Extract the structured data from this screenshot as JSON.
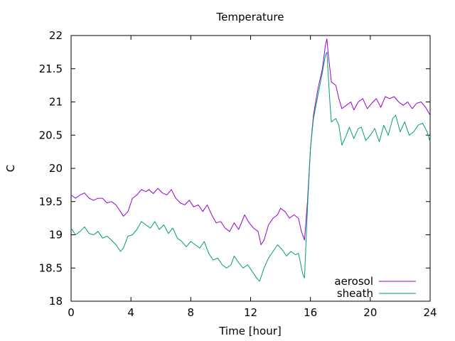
{
  "chart_data": {
    "type": "line",
    "title": "Temperature",
    "xlabel": "Time [hour]",
    "ylabel": "C",
    "xlim": [
      0,
      24
    ],
    "ylim": [
      18,
      22
    ],
    "xticks": [
      0,
      4,
      8,
      12,
      16,
      20,
      24
    ],
    "yticks": [
      18,
      18.5,
      19,
      19.5,
      20,
      20.5,
      21,
      21.5,
      22
    ],
    "grid": false,
    "legend_position": "bottom-right",
    "series": [
      {
        "name": "aerosol",
        "color": "#9400d3",
        "points": [
          [
            0.0,
            19.6
          ],
          [
            0.3,
            19.55
          ],
          [
            0.6,
            19.6
          ],
          [
            0.9,
            19.63
          ],
          [
            1.2,
            19.55
          ],
          [
            1.5,
            19.52
          ],
          [
            1.8,
            19.55
          ],
          [
            2.1,
            19.55
          ],
          [
            2.4,
            19.48
          ],
          [
            2.7,
            19.5
          ],
          [
            3.0,
            19.45
          ],
          [
            3.3,
            19.35
          ],
          [
            3.5,
            19.28
          ],
          [
            3.8,
            19.35
          ],
          [
            4.1,
            19.55
          ],
          [
            4.4,
            19.6
          ],
          [
            4.7,
            19.68
          ],
          [
            5.0,
            19.65
          ],
          [
            5.2,
            19.68
          ],
          [
            5.5,
            19.62
          ],
          [
            5.8,
            19.7
          ],
          [
            6.1,
            19.63
          ],
          [
            6.4,
            19.6
          ],
          [
            6.7,
            19.68
          ],
          [
            7.0,
            19.55
          ],
          [
            7.3,
            19.48
          ],
          [
            7.6,
            19.45
          ],
          [
            7.9,
            19.52
          ],
          [
            8.2,
            19.42
          ],
          [
            8.5,
            19.45
          ],
          [
            8.8,
            19.35
          ],
          [
            9.1,
            19.45
          ],
          [
            9.4,
            19.3
          ],
          [
            9.7,
            19.18
          ],
          [
            10.0,
            19.2
          ],
          [
            10.3,
            19.1
          ],
          [
            10.6,
            19.05
          ],
          [
            10.9,
            19.18
          ],
          [
            11.2,
            19.08
          ],
          [
            11.6,
            19.3
          ],
          [
            11.9,
            19.18
          ],
          [
            12.2,
            19.1
          ],
          [
            12.5,
            19.05
          ],
          [
            12.7,
            18.85
          ],
          [
            12.9,
            18.92
          ],
          [
            13.2,
            19.15
          ],
          [
            13.5,
            19.25
          ],
          [
            13.8,
            19.3
          ],
          [
            14.0,
            19.4
          ],
          [
            14.3,
            19.35
          ],
          [
            14.6,
            19.25
          ],
          [
            14.9,
            19.3
          ],
          [
            15.2,
            19.25
          ],
          [
            15.4,
            19.05
          ],
          [
            15.6,
            18.92
          ],
          [
            15.8,
            19.5
          ],
          [
            16.0,
            20.3
          ],
          [
            16.2,
            20.8
          ],
          [
            16.5,
            21.2
          ],
          [
            16.8,
            21.5
          ],
          [
            17.0,
            21.85
          ],
          [
            17.1,
            21.95
          ],
          [
            17.2,
            21.7
          ],
          [
            17.4,
            21.3
          ],
          [
            17.7,
            21.25
          ],
          [
            17.9,
            21.05
          ],
          [
            18.1,
            20.9
          ],
          [
            18.4,
            20.95
          ],
          [
            18.7,
            21.0
          ],
          [
            18.9,
            20.88
          ],
          [
            19.2,
            21.0
          ],
          [
            19.5,
            21.05
          ],
          [
            19.8,
            20.9
          ],
          [
            20.1,
            20.98
          ],
          [
            20.4,
            21.05
          ],
          [
            20.7,
            20.92
          ],
          [
            21.0,
            21.08
          ],
          [
            21.3,
            21.05
          ],
          [
            21.6,
            21.08
          ],
          [
            21.9,
            21.0
          ],
          [
            22.2,
            20.95
          ],
          [
            22.5,
            21.0
          ],
          [
            22.8,
            20.9
          ],
          [
            23.1,
            20.98
          ],
          [
            23.4,
            21.0
          ],
          [
            23.7,
            20.92
          ],
          [
            24.0,
            20.8
          ]
        ]
      },
      {
        "name": "sheath",
        "color": "#009e73",
        "points": [
          [
            0.0,
            19.1
          ],
          [
            0.3,
            19.0
          ],
          [
            0.6,
            19.05
          ],
          [
            0.9,
            19.12
          ],
          [
            1.2,
            19.02
          ],
          [
            1.5,
            19.0
          ],
          [
            1.8,
            19.05
          ],
          [
            2.1,
            18.95
          ],
          [
            2.4,
            18.98
          ],
          [
            2.7,
            18.92
          ],
          [
            3.0,
            18.85
          ],
          [
            3.3,
            18.75
          ],
          [
            3.5,
            18.8
          ],
          [
            3.8,
            18.98
          ],
          [
            4.1,
            19.0
          ],
          [
            4.4,
            19.08
          ],
          [
            4.7,
            19.2
          ],
          [
            5.0,
            19.15
          ],
          [
            5.3,
            19.1
          ],
          [
            5.6,
            19.2
          ],
          [
            5.9,
            19.08
          ],
          [
            6.2,
            19.15
          ],
          [
            6.5,
            19.02
          ],
          [
            6.8,
            19.1
          ],
          [
            7.1,
            18.95
          ],
          [
            7.4,
            18.9
          ],
          [
            7.7,
            18.82
          ],
          [
            8.0,
            18.9
          ],
          [
            8.3,
            18.85
          ],
          [
            8.6,
            18.8
          ],
          [
            8.9,
            18.9
          ],
          [
            9.2,
            18.72
          ],
          [
            9.5,
            18.62
          ],
          [
            9.8,
            18.65
          ],
          [
            10.1,
            18.55
          ],
          [
            10.4,
            18.5
          ],
          [
            10.7,
            18.55
          ],
          [
            10.9,
            18.68
          ],
          [
            11.2,
            18.58
          ],
          [
            11.5,
            18.5
          ],
          [
            11.8,
            18.55
          ],
          [
            12.1,
            18.45
          ],
          [
            12.4,
            18.35
          ],
          [
            12.6,
            18.3
          ],
          [
            12.9,
            18.5
          ],
          [
            13.2,
            18.65
          ],
          [
            13.5,
            18.75
          ],
          [
            13.8,
            18.85
          ],
          [
            14.1,
            18.78
          ],
          [
            14.4,
            18.68
          ],
          [
            14.7,
            18.75
          ],
          [
            15.0,
            18.7
          ],
          [
            15.2,
            18.72
          ],
          [
            15.5,
            18.4
          ],
          [
            15.6,
            18.35
          ],
          [
            15.8,
            19.4
          ],
          [
            16.0,
            20.3
          ],
          [
            16.2,
            20.75
          ],
          [
            16.5,
            21.1
          ],
          [
            16.8,
            21.45
          ],
          [
            17.0,
            21.7
          ],
          [
            17.1,
            21.75
          ],
          [
            17.3,
            21.0
          ],
          [
            17.4,
            20.7
          ],
          [
            17.7,
            20.75
          ],
          [
            17.9,
            20.65
          ],
          [
            18.1,
            20.35
          ],
          [
            18.4,
            20.5
          ],
          [
            18.6,
            20.62
          ],
          [
            18.9,
            20.45
          ],
          [
            19.2,
            20.6
          ],
          [
            19.4,
            20.62
          ],
          [
            19.7,
            20.42
          ],
          [
            20.0,
            20.5
          ],
          [
            20.3,
            20.6
          ],
          [
            20.6,
            20.4
          ],
          [
            20.9,
            20.65
          ],
          [
            21.2,
            20.5
          ],
          [
            21.5,
            20.75
          ],
          [
            21.7,
            20.8
          ],
          [
            22.0,
            20.55
          ],
          [
            22.3,
            20.7
          ],
          [
            22.6,
            20.5
          ],
          [
            22.9,
            20.55
          ],
          [
            23.2,
            20.65
          ],
          [
            23.5,
            20.68
          ],
          [
            23.8,
            20.55
          ],
          [
            24.0,
            20.4
          ]
        ]
      }
    ]
  }
}
